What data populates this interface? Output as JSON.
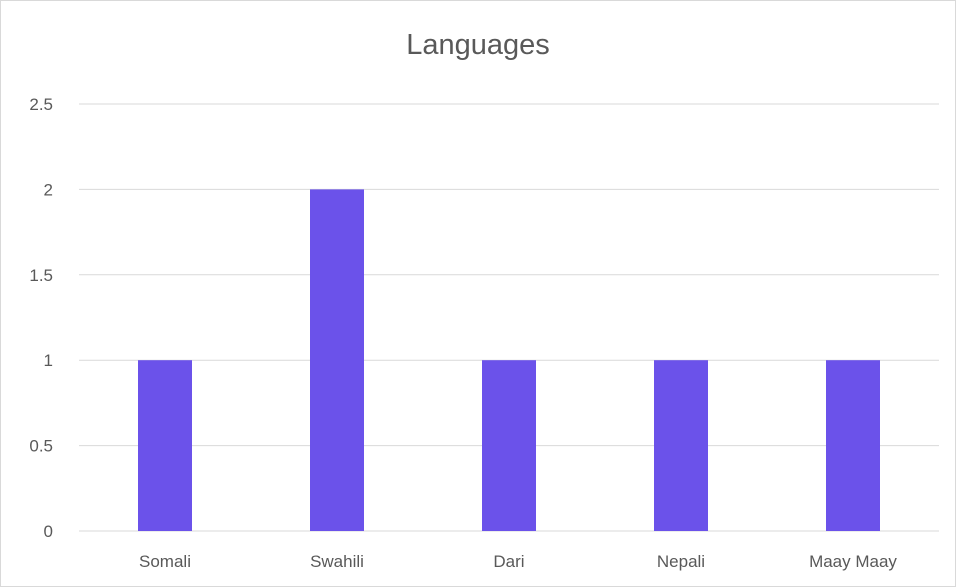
{
  "chart_data": {
    "type": "bar",
    "title": "Languages",
    "categories": [
      "Somali",
      "Swahili",
      "Dari",
      "Nepali",
      "Maay Maay"
    ],
    "values": [
      1,
      2,
      1,
      1,
      1
    ],
    "y_ticks": [
      "0",
      "0.5",
      "1",
      "1.5",
      "2",
      "2.5"
    ],
    "ylim": [
      0,
      2.5
    ],
    "grid": true,
    "legend": "none",
    "bar_color": "#6b52ea",
    "grid_color": "#d9d9d9"
  }
}
